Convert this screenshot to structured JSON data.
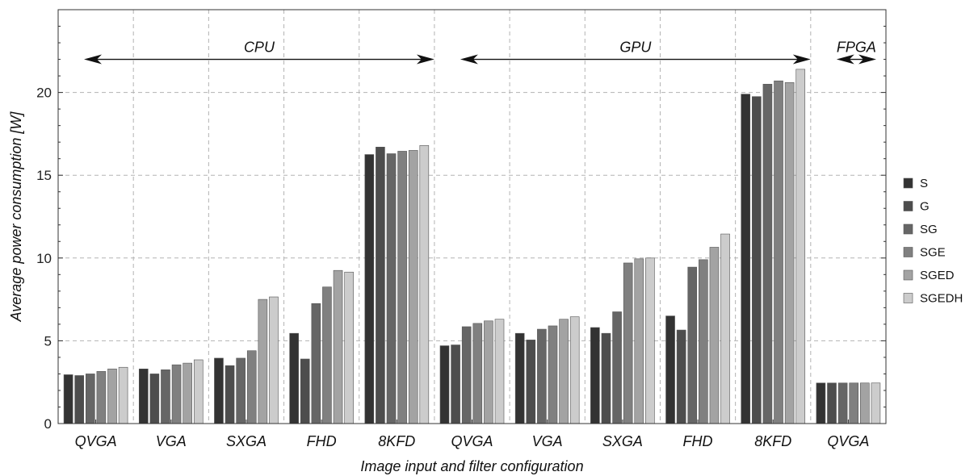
{
  "chart_data": {
    "type": "bar",
    "xlabel": "Image input and filter configuration",
    "ylabel": "Average power consumption [W]",
    "ylim": [
      0,
      25
    ],
    "yticks": [
      0,
      5,
      10,
      15,
      20
    ],
    "grid": true,
    "legend_placement": "right",
    "categories": [
      "QVGA",
      "VGA",
      "SXGA",
      "FHD",
      "8KFD",
      "QVGA",
      "VGA",
      "SXGA",
      "FHD",
      "8KFD",
      "QVGA"
    ],
    "groups": [
      {
        "label": "CPU",
        "from": 0,
        "to": 4
      },
      {
        "label": "GPU",
        "from": 5,
        "to": 9
      },
      {
        "label": "FPGA",
        "from": 10,
        "to": 10
      }
    ],
    "series": [
      {
        "name": "S",
        "color": "#333333",
        "values": [
          2.95,
          3.3,
          3.95,
          5.45,
          16.25,
          4.7,
          5.45,
          5.8,
          6.5,
          19.9,
          2.45
        ]
      },
      {
        "name": "G",
        "color": "#4d4d4d",
        "values": [
          2.9,
          3.0,
          3.5,
          3.9,
          16.7,
          4.75,
          5.05,
          5.45,
          5.65,
          19.75,
          2.45
        ]
      },
      {
        "name": "SG",
        "color": "#666666",
        "values": [
          3.0,
          3.25,
          3.95,
          7.25,
          16.3,
          5.85,
          5.7,
          6.75,
          9.45,
          20.5,
          2.45
        ]
      },
      {
        "name": "SGE",
        "color": "#808080",
        "values": [
          3.15,
          3.55,
          4.4,
          8.25,
          16.45,
          6.05,
          5.9,
          9.7,
          9.9,
          20.7,
          2.45
        ]
      },
      {
        "name": "SGED",
        "color": "#a3a3a3",
        "values": [
          3.3,
          3.65,
          7.5,
          9.25,
          16.5,
          6.2,
          6.3,
          9.95,
          10.65,
          20.6,
          2.45
        ]
      },
      {
        "name": "SGEDH",
        "color": "#cccccc",
        "values": [
          3.4,
          3.85,
          7.65,
          9.15,
          16.8,
          6.3,
          6.45,
          10.0,
          11.45,
          21.4,
          2.45
        ]
      }
    ]
  }
}
